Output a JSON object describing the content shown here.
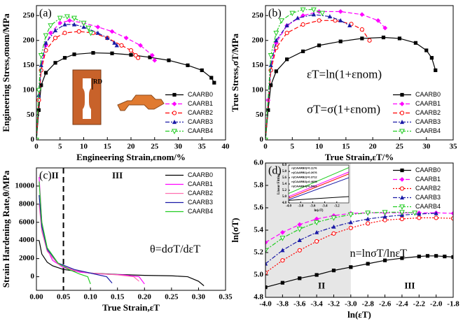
{
  "chart_data": [
    {
      "type": "line",
      "label": "(a)",
      "xlabel": "Engineering Strain,εnom/%",
      "ylabel": "Engineering Stress,σnom/MPa",
      "xlim": [
        0,
        40
      ],
      "ylim": [
        0,
        270
      ],
      "xticks": [
        0,
        5,
        10,
        15,
        20,
        25,
        30,
        35,
        40
      ],
      "yticks": [
        0,
        50,
        100,
        150,
        200,
        250
      ],
      "legend": "lower right",
      "annotations": [
        "RD"
      ],
      "series": [
        {
          "name": "CAARB0",
          "color": "#000000",
          "dash": "solid",
          "marker": "square",
          "x": [
            0,
            0.5,
            1,
            2,
            4,
            6,
            8,
            12,
            16,
            20,
            24,
            28,
            32,
            35,
            37,
            37.6
          ],
          "values": [
            0,
            60,
            110,
            135,
            155,
            165,
            172,
            175,
            174,
            171,
            166,
            160,
            150,
            140,
            125,
            115
          ]
        },
        {
          "name": "CAARB1",
          "color": "#ff00ff",
          "dash": "dashed",
          "marker": "diamond",
          "x": [
            0,
            0.5,
            1,
            2,
            3,
            5,
            7,
            10,
            13,
            16,
            19,
            22,
            24.5,
            25
          ],
          "values": [
            0,
            80,
            140,
            190,
            215,
            235,
            240,
            235,
            227,
            218,
            205,
            190,
            170,
            160
          ]
        },
        {
          "name": "CAARB2",
          "color": "#ff0000",
          "dash": "dashed",
          "marker": "circle-open",
          "x": [
            0,
            0.5,
            1,
            2,
            4,
            6,
            9,
            12,
            15,
            18,
            20,
            21,
            21.5
          ],
          "values": [
            0,
            80,
            140,
            180,
            205,
            215,
            218,
            215,
            205,
            190,
            180,
            170,
            165
          ]
        },
        {
          "name": "CAARB3",
          "color": "#1a1aa6",
          "dash": "dashdot",
          "marker": "triangle",
          "x": [
            0,
            0.5,
            1,
            2,
            4,
            6,
            8,
            10,
            13,
            15,
            16.5,
            17
          ],
          "values": [
            0,
            90,
            150,
            195,
            220,
            232,
            232,
            227,
            215,
            205,
            195,
            190
          ]
        },
        {
          "name": "CAARB4",
          "color": "#22cc22",
          "dash": "dashdot",
          "marker": "triangle-down-open",
          "x": [
            0,
            0.5,
            1,
            2,
            3,
            5,
            6.5,
            8,
            10,
            11,
            11.5
          ],
          "values": [
            0,
            100,
            170,
            210,
            230,
            245,
            248,
            245,
            235,
            225,
            215
          ]
        }
      ]
    },
    {
      "type": "line",
      "label": "(b)",
      "xlabel": "True Strain,εT/%",
      "ylabel": "True Stress,σT/MPa",
      "xlim": [
        0,
        35
      ],
      "ylim": [
        0,
        270
      ],
      "xticks": [
        0,
        5,
        10,
        15,
        20,
        25,
        30,
        35
      ],
      "yticks": [
        0,
        50,
        100,
        150,
        200,
        250
      ],
      "legend": "lower right",
      "annotations": [
        "εT=ln(1+εnom)",
        "σT=σ(1+εnom)"
      ],
      "series": [
        {
          "name": "CAARB0",
          "color": "#000000",
          "dash": "solid",
          "marker": "square",
          "x": [
            0,
            0.5,
            1,
            2,
            4,
            7,
            10,
            14,
            18,
            22,
            25,
            28,
            30,
            31,
            31.7
          ],
          "values": [
            0,
            60,
            110,
            138,
            162,
            178,
            190,
            198,
            204,
            206,
            204,
            195,
            180,
            165,
            140
          ]
        },
        {
          "name": "CAARB1",
          "color": "#ff00ff",
          "dash": "dashed",
          "marker": "diamond",
          "x": [
            0,
            0.5,
            1,
            2,
            4,
            7,
            10,
            14,
            18,
            21,
            22.3
          ],
          "values": [
            0,
            80,
            140,
            195,
            230,
            250,
            258,
            258,
            252,
            240,
            225
          ]
        },
        {
          "name": "CAARB2",
          "color": "#ff0000",
          "dash": "dashed",
          "marker": "circle-open",
          "x": [
            0,
            1,
            2,
            4,
            7,
            10,
            13,
            16,
            18,
            19.4
          ],
          "values": [
            0,
            140,
            185,
            215,
            232,
            240,
            240,
            233,
            222,
            200
          ]
        },
        {
          "name": "CAARB3",
          "color": "#1a1aa6",
          "dash": "dashdot",
          "marker": "triangle",
          "x": [
            0,
            1,
            2,
            4,
            6,
            9,
            12,
            14,
            15.7
          ],
          "values": [
            0,
            150,
            200,
            230,
            245,
            252,
            248,
            240,
            230
          ]
        },
        {
          "name": "CAARB4",
          "color": "#22cc22",
          "dash": "dashdot",
          "marker": "triangle-down-open",
          "x": [
            0,
            1,
            2,
            3,
            5,
            7,
            9,
            10.6
          ],
          "values": [
            0,
            170,
            215,
            240,
            255,
            262,
            262,
            255
          ]
        }
      ]
    },
    {
      "type": "line",
      "label": "(c)",
      "xlabel": "True Strain,εT",
      "ylabel": "Strain Hardening Rate,θ/MPa",
      "xlim": [
        0,
        0.35
      ],
      "ylim": [
        -1500,
        12000
      ],
      "xticks": [
        {
          "value": 0,
          "label": "0.00"
        },
        0.05,
        {
          "value": 0.1,
          "label": "0.10"
        },
        0.15,
        {
          "value": 0.2,
          "label": "0.20"
        },
        0.25,
        {
          "value": 0.3,
          "label": "0.30"
        },
        0.35
      ],
      "yticks": [
        0,
        2000,
        4000,
        6000,
        8000,
        10000
      ],
      "vline": 0.05,
      "legend": "upper right",
      "annotations": [
        "II",
        "III",
        "θ=dσT/dεT"
      ],
      "series": [
        {
          "name": "CAARB0",
          "color": "#000000",
          "dash": "solid",
          "marker": "none",
          "x": [
            0.005,
            0.01,
            0.02,
            0.03,
            0.05,
            0.1,
            0.15,
            0.2,
            0.25,
            0.28,
            0.3,
            0.31
          ],
          "values": [
            4000,
            2500,
            1600,
            1200,
            800,
            400,
            250,
            150,
            100,
            0,
            -500,
            -1000
          ]
        },
        {
          "name": "CAARB1",
          "color": "#ff00ff",
          "dash": "solid",
          "marker": "none",
          "x": [
            0.005,
            0.01,
            0.02,
            0.03,
            0.05,
            0.08,
            0.12,
            0.16,
            0.19,
            0.2
          ],
          "values": [
            11000,
            6000,
            3000,
            1800,
            1000,
            500,
            300,
            200,
            0,
            -800
          ]
        },
        {
          "name": "CAARB2",
          "color": "#ff6fb0",
          "dash": "solid",
          "marker": "none",
          "x": [
            0.005,
            0.01,
            0.02,
            0.04,
            0.07,
            0.1,
            0.15,
            0.18,
            0.19
          ],
          "values": [
            8000,
            5000,
            2800,
            1400,
            700,
            400,
            200,
            0,
            -500
          ]
        },
        {
          "name": "CAARB3",
          "color": "#1a1aa6",
          "dash": "solid",
          "marker": "none",
          "x": [
            0.005,
            0.01,
            0.02,
            0.04,
            0.07,
            0.1,
            0.13,
            0.14
          ],
          "values": [
            9000,
            5500,
            3000,
            1500,
            800,
            400,
            0,
            -700
          ]
        },
        {
          "name": "CAARB4",
          "color": "#22cc22",
          "dash": "solid",
          "marker": "none",
          "x": [
            0.005,
            0.01,
            0.02,
            0.04,
            0.06,
            0.08,
            0.095,
            0.1
          ],
          "values": [
            10500,
            6000,
            3200,
            1500,
            800,
            300,
            0,
            -800
          ]
        }
      ]
    },
    {
      "type": "line",
      "label": "(d)",
      "xlabel": "ln(εT)",
      "ylabel": "ln(σT)",
      "xlim": [
        -4,
        -1.8
      ],
      "ylim": [
        4.8,
        6
      ],
      "xticks": [
        {
          "value": -4,
          "label": "-4.0"
        },
        -3.8,
        -3.6,
        -3.4,
        -3.2,
        {
          "value": -3,
          "label": "-3.0"
        },
        -2.8,
        -2.6,
        -2.4,
        -2.2,
        {
          "value": -2,
          "label": "-2.0"
        },
        -1.8
      ],
      "yticks": [
        4.8,
        {
          "value": 5,
          "label": "5.0"
        },
        5.2,
        5.4,
        5.6,
        5.8,
        {
          "value": 6,
          "label": "6.0"
        }
      ],
      "shade": [
        -4,
        -3
      ],
      "legend": "upper right",
      "annotations": [
        "n=lnσT/lnεT",
        "II",
        "III"
      ],
      "series": [
        {
          "name": "CAARB0",
          "color": "#000000",
          "dash": "solid",
          "marker": "square",
          "x": [
            -4,
            -3.8,
            -3.6,
            -3.4,
            -3.2,
            -3,
            -2.8,
            -2.6,
            -2.4,
            -2.2,
            -2.1,
            -2,
            -1.9,
            -1.8
          ],
          "values": [
            4.89,
            4.93,
            4.97,
            5.0,
            5.04,
            5.07,
            5.1,
            5.13,
            5.15,
            5.165,
            5.17,
            5.17,
            5.165,
            5.16
          ]
        },
        {
          "name": "CAARB1",
          "color": "#ff00ff",
          "dash": "dashed",
          "marker": "diamond",
          "x": [
            -4,
            -3.8,
            -3.6,
            -3.4,
            -3.2,
            -3,
            -2.8,
            -2.6,
            -2.4,
            -2.2,
            -2,
            -1.8
          ],
          "values": [
            5.29,
            5.38,
            5.45,
            5.5,
            5.53,
            5.55,
            5.555,
            5.555,
            5.555,
            5.555,
            5.555,
            5.55
          ]
        },
        {
          "name": "CAARB2",
          "color": "#ff0000",
          "dash": "dotted",
          "marker": "circle-open",
          "x": [
            -4,
            -3.8,
            -3.6,
            -3.4,
            -3.2,
            -3,
            -2.8,
            -2.6,
            -2.4,
            -2.2,
            -2,
            -1.8
          ],
          "values": [
            5.02,
            5.13,
            5.22,
            5.3,
            5.37,
            5.42,
            5.46,
            5.49,
            5.5,
            5.51,
            5.51,
            5.505
          ]
        },
        {
          "name": "CAARB3",
          "color": "#1a1aa6",
          "dash": "dashdot",
          "marker": "triangle",
          "x": [
            -4,
            -3.8,
            -3.6,
            -3.4,
            -3.2,
            -3,
            -2.8,
            -2.6,
            -2.4,
            -2.2,
            -2
          ],
          "values": [
            5.1,
            5.22,
            5.31,
            5.38,
            5.43,
            5.47,
            5.5,
            5.52,
            5.535,
            5.545,
            5.55
          ]
        },
        {
          "name": "CAARB4",
          "color": "#22cc22",
          "dash": "dashdot",
          "marker": "triangle-down-open",
          "x": [
            -4,
            -3.8,
            -3.6,
            -3.4,
            -3.2,
            -3,
            -2.8,
            -2.6,
            -2.4,
            -2.25
          ],
          "values": [
            5.22,
            5.33,
            5.41,
            5.47,
            5.51,
            5.54,
            5.555,
            5.56,
            5.56,
            5.555
          ]
        }
      ]
    },
    {
      "type": "line",
      "xlabel": "ln(εT)",
      "ylabel": "Linear Fitting",
      "xlim": [
        -4,
        -3
      ],
      "ylim": [
        4.8,
        6
      ],
      "xticks": [
        {
          "value": -4,
          "label": "-4.0"
        },
        -3.8,
        -3.6,
        -3.4,
        -3.2
      ],
      "yticks": [
        4.8,
        {
          "value": 5,
          "label": "5.0"
        },
        5.2,
        5.4,
        5.6,
        5.8,
        {
          "value": 6,
          "label": "6.0"
        }
      ],
      "annotations": [
        "n(CAARB0)=0.1176",
        "n(CAARB1)=0.2676",
        "n(CAARB2)=0.3712",
        "n(CAARB3)=0.4695",
        "n(CAARB4)=0.5961"
      ],
      "series": [
        {
          "color": "#000000",
          "dash": "solid",
          "marker": "none",
          "x": [
            -4,
            -3
          ],
          "values": [
            4.88,
            5.0
          ]
        },
        {
          "color": "#ff00ff",
          "dash": "solid",
          "marker": "none",
          "x": [
            -4,
            -3
          ],
          "values": [
            5.0,
            5.78
          ]
        },
        {
          "color": "#ff0000",
          "dash": "solid",
          "marker": "none",
          "x": [
            -4,
            -3
          ],
          "values": [
            4.95,
            5.72
          ]
        },
        {
          "color": "#1a1aa6",
          "dash": "solid",
          "marker": "none",
          "x": [
            -4,
            -3
          ],
          "values": [
            4.9,
            5.6
          ]
        },
        {
          "color": "#22cc22",
          "dash": "solid",
          "marker": "none",
          "x": [
            -4,
            -3
          ],
          "values": [
            5.1,
            5.92
          ]
        }
      ]
    }
  ]
}
